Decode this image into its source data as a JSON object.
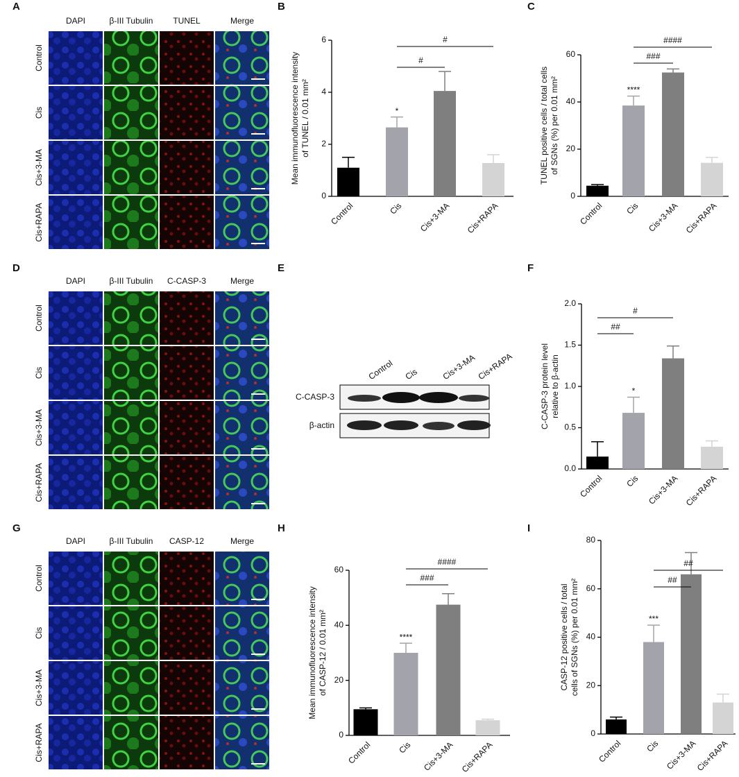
{
  "panel_letters": [
    "A",
    "B",
    "C",
    "D",
    "E",
    "F",
    "G",
    "H",
    "I"
  ],
  "micrographs": [
    {
      "columns": [
        "DAPI",
        "β-III Tubulin",
        "TUNEL",
        "Merge"
      ],
      "rows": [
        "Control",
        "Cis",
        "Cis+3-MA",
        "Cis+RAPA"
      ]
    },
    {
      "columns": [
        "DAPI",
        "β-III Tubulin",
        "C-CASP-3",
        "Merge"
      ],
      "rows": [
        "Control",
        "Cis",
        "Cis+3-MA",
        "Cis+RAPA"
      ]
    },
    {
      "columns": [
        "DAPI",
        "β-III Tubulin",
        "CASP-12",
        "Merge"
      ],
      "rows": [
        "Control",
        "Cis",
        "Cis+3-MA",
        "Cis+RAPA"
      ]
    }
  ],
  "western": {
    "lanes": [
      "Control",
      "Cis",
      "Cis+3-MA",
      "Cis+RAPA"
    ],
    "bands": [
      "C-CASP-3",
      "β-actin"
    ]
  },
  "chart_data": [
    {
      "type": "bar",
      "ylabel": [
        "Mean immunofluorescence intensity",
        "of TUNEL / 0.01 mm²"
      ],
      "categories": [
        "Control",
        "Cis",
        "Cis+3-MA",
        "Cis+RAPA"
      ],
      "values": [
        1.1,
        2.65,
        4.05,
        1.28
      ],
      "errors": [
        0.4,
        0.4,
        0.75,
        0.32
      ],
      "colors": [
        "#000000",
        "#a3a3ab",
        "#7f7f7f",
        "#d4d4d4"
      ],
      "ylim": [
        0,
        6
      ],
      "yticks": [
        0,
        2,
        4,
        6
      ],
      "star_labels": [
        null,
        "*",
        null,
        null
      ],
      "comparisons": [
        {
          "label": "#",
          "between": [
            "Cis",
            "Cis+3-MA"
          ]
        },
        {
          "label": "#",
          "between": [
            "Cis",
            "Cis+RAPA"
          ]
        }
      ]
    },
    {
      "type": "bar",
      "ylabel": [
        "TUNEL positive cells / total cells",
        "of SGNs (%) per 0.01 mm²"
      ],
      "categories": [
        "Control",
        "Cis",
        "Cis+3-MA",
        "Cis+RAPA"
      ],
      "values": [
        4.5,
        38.5,
        52.5,
        14.2
      ],
      "errors": [
        0.5,
        4,
        1.5,
        2.3
      ],
      "colors": [
        "#000000",
        "#a3a3ab",
        "#7f7f7f",
        "#d4d4d4"
      ],
      "ylim": [
        0,
        60
      ],
      "yticks": [
        0,
        20,
        40,
        60
      ],
      "star_labels": [
        null,
        "****",
        null,
        null
      ],
      "comparisons": [
        {
          "label": "###",
          "between": [
            "Cis",
            "Cis+3-MA"
          ]
        },
        {
          "label": "####",
          "between": [
            "Cis",
            "Cis+RAPA"
          ]
        }
      ]
    },
    {
      "type": "bar",
      "ylabel": [
        "C-CASP-3 protein level",
        "relative to β-actin"
      ],
      "categories": [
        "Control",
        "Cis",
        "Cis+3-MA",
        "Cis+RAPA"
      ],
      "values": [
        0.15,
        0.68,
        1.34,
        0.27
      ],
      "errors": [
        0.18,
        0.19,
        0.15,
        0.07
      ],
      "colors": [
        "#000000",
        "#a3a3ab",
        "#7f7f7f",
        "#d4d4d4"
      ],
      "ylim": [
        0,
        2
      ],
      "yticks": [
        {
          "value": 0,
          "label": "0.0"
        },
        0.5,
        {
          "value": 1,
          "label": "1.0"
        },
        1.5,
        {
          "value": 2,
          "label": "2.0"
        }
      ],
      "star_labels": [
        null,
        "*",
        null,
        null
      ],
      "comparisons": [
        {
          "label": "##",
          "between": [
            "Control",
            "Cis"
          ]
        },
        {
          "label": "#",
          "between": [
            "Control",
            "Cis+3-MA"
          ]
        }
      ]
    },
    {
      "type": "bar",
      "ylabel": [
        "Mean immunofluorescence intensity",
        "of CASP-12 / 0.01 mm²"
      ],
      "categories": [
        "Control",
        "Cis",
        "Cis+3-MA",
        "Cis+RAPA"
      ],
      "values": [
        9.5,
        30,
        47.5,
        5.5
      ],
      "errors": [
        0.5,
        3.5,
        4,
        0.4
      ],
      "colors": [
        "#000000",
        "#a3a3ab",
        "#7f7f7f",
        "#d4d4d4"
      ],
      "ylim": [
        0,
        60
      ],
      "yticks": [
        0,
        20,
        40,
        60
      ],
      "star_labels": [
        null,
        "****",
        null,
        null
      ],
      "comparisons": [
        {
          "label": "###",
          "between": [
            "Cis",
            "Cis+3-MA"
          ]
        },
        {
          "label": "####",
          "between": [
            "Cis",
            "Cis+RAPA"
          ]
        }
      ]
    },
    {
      "type": "bar",
      "ylabel": [
        "CASP-12 positive cells / total",
        "cells of SGNs (%) per 0.01 mm²"
      ],
      "categories": [
        "Control",
        "Cis",
        "Cis+3-MA",
        "Cis+RAPA"
      ],
      "values": [
        6,
        38,
        66,
        13
      ],
      "errors": [
        1,
        7,
        9,
        3.5
      ],
      "colors": [
        "#000000",
        "#a3a3ab",
        "#7f7f7f",
        "#d4d4d4"
      ],
      "ylim": [
        0,
        80
      ],
      "yticks": [
        0,
        20,
        40,
        60,
        80
      ],
      "star_labels": [
        null,
        "***",
        null,
        null
      ],
      "comparisons": [
        {
          "label": "##",
          "between": [
            "Cis",
            "Cis+3-MA"
          ]
        },
        {
          "label": "##",
          "between": [
            "Cis",
            "Cis+RAPA"
          ]
        }
      ]
    }
  ]
}
